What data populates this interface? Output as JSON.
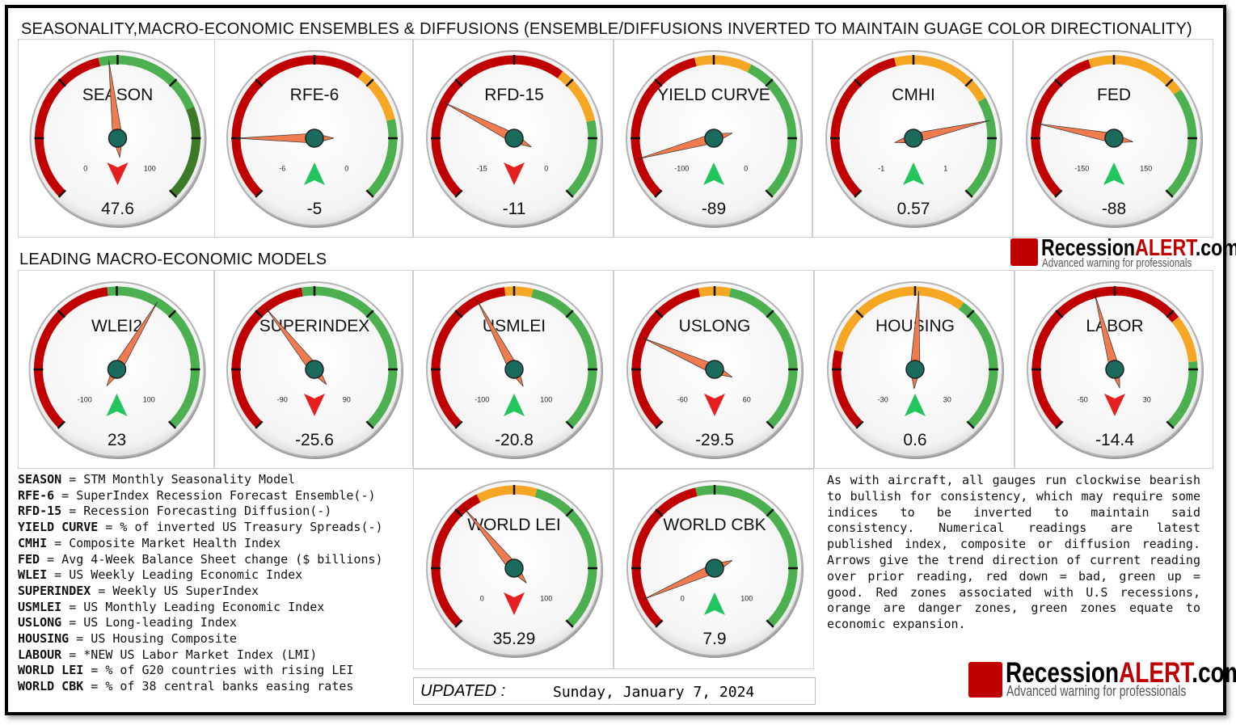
{
  "title_row1": "SEASONALITY,MACRO-ECONOMIC ENSEMBLES & DIFFUSIONS (ENSEMBLE/DIFFUSIONS INVERTED TO MAINTAIN GUAGE COLOR DIRECTIONALITY)",
  "title_row2": "LEADING MACRO-ECONOMIC MODELS",
  "brand": {
    "name_a": "Recession",
    "name_b": "ALERT",
    "name_c": ".com",
    "tagline": "Advanced warning for professionals",
    "color": "#c00000"
  },
  "colors": {
    "red": "#c00000",
    "orange": "#f5a623",
    "green": "#4caf50",
    "dark_green": "#3c7a2a",
    "needle": "#f07b4f",
    "hub": "#1a6b5c",
    "arrow_up": "#22c55e",
    "arrow_down": "#e62020"
  },
  "chart_data": [
    {
      "type": "gauge",
      "name": "SEASON",
      "value": 47.6,
      "value_label": "47.6",
      "min": 0,
      "max": 100,
      "min_label": "0",
      "max_label": "100",
      "trend": "down",
      "zones": [
        {
          "from": 0,
          "to": 45,
          "color": "red"
        },
        {
          "from": 45,
          "to": 75,
          "color": "green"
        },
        {
          "from": 75,
          "to": 100,
          "color": "dark_green"
        }
      ]
    },
    {
      "type": "gauge",
      "name": "RFE-6",
      "value": -5,
      "value_label": "-5",
      "min": -6,
      "max": 0,
      "min_label": "-6",
      "max_label": "0",
      "trend": "up",
      "zones": [
        {
          "from": -6,
          "to": -2.2,
          "color": "red"
        },
        {
          "from": -2.2,
          "to": -1.3,
          "color": "orange"
        },
        {
          "from": -1.3,
          "to": 0,
          "color": "green"
        }
      ]
    },
    {
      "type": "gauge",
      "name": "RFD-15",
      "value": -11,
      "value_label": "-11",
      "min": -15,
      "max": 0,
      "min_label": "-15",
      "max_label": "0",
      "trend": "down",
      "zones": [
        {
          "from": -15,
          "to": -5.5,
          "color": "red"
        },
        {
          "from": -5.5,
          "to": -3.2,
          "color": "orange"
        },
        {
          "from": -3.2,
          "to": 0,
          "color": "green"
        }
      ]
    },
    {
      "type": "gauge",
      "name": "YIELD CURVE",
      "value": -89,
      "value_label": "-89",
      "min": -100,
      "max": 0,
      "min_label": "-100",
      "max_label": "0",
      "trend": "up",
      "zones": [
        {
          "from": -100,
          "to": -55,
          "color": "red"
        },
        {
          "from": -55,
          "to": -40,
          "color": "orange"
        },
        {
          "from": -40,
          "to": 0,
          "color": "green"
        }
      ]
    },
    {
      "type": "gauge",
      "name": "CMHI",
      "value": 0.57,
      "value_label": "0.57",
      "min": -1,
      "max": 1,
      "min_label": "-1",
      "max_label": "1",
      "trend": "up",
      "zones": [
        {
          "from": -1,
          "to": -0.1,
          "color": "red"
        },
        {
          "from": -0.1,
          "to": 0.45,
          "color": "orange"
        },
        {
          "from": 0.45,
          "to": 1,
          "color": "green"
        }
      ]
    },
    {
      "type": "gauge",
      "name": "FED",
      "value": -88,
      "value_label": "-88",
      "min": -150,
      "max": 150,
      "min_label": "-150",
      "max_label": "150",
      "trend": "up",
      "zones": [
        {
          "from": -150,
          "to": -20,
          "color": "red"
        },
        {
          "from": -20,
          "to": 60,
          "color": "orange"
        },
        {
          "from": 60,
          "to": 150,
          "color": "green"
        }
      ]
    },
    {
      "type": "gauge",
      "name": "WLEI2",
      "value": 23,
      "value_label": "23",
      "min": -100,
      "max": 100,
      "min_label": "-100",
      "max_label": "100",
      "trend": "up",
      "zones": [
        {
          "from": -100,
          "to": -5,
          "color": "red"
        },
        {
          "from": -5,
          "to": 100,
          "color": "green"
        }
      ]
    },
    {
      "type": "gauge",
      "name": "SUPERINDEX",
      "value": -25.6,
      "value_label": "-25.6",
      "min": -90,
      "max": 90,
      "min_label": "-90",
      "max_label": "90",
      "trend": "down",
      "zones": [
        {
          "from": -90,
          "to": -6,
          "color": "red"
        },
        {
          "from": -6,
          "to": 90,
          "color": "green"
        }
      ]
    },
    {
      "type": "gauge",
      "name": "USMLEI",
      "value": -20.8,
      "value_label": "-20.8",
      "min": -100,
      "max": 100,
      "min_label": "-100",
      "max_label": "100",
      "trend": "up",
      "zones": [
        {
          "from": -100,
          "to": -5,
          "color": "red"
        },
        {
          "from": -5,
          "to": 10,
          "color": "orange"
        },
        {
          "from": 10,
          "to": 100,
          "color": "green"
        }
      ]
    },
    {
      "type": "gauge",
      "name": "USLONG",
      "value": -29.5,
      "value_label": "-29.5",
      "min": -60,
      "max": 60,
      "min_label": "-60",
      "max_label": "60",
      "trend": "down",
      "zones": [
        {
          "from": -60,
          "to": -5,
          "color": "red"
        },
        {
          "from": -5,
          "to": 5,
          "color": "orange"
        },
        {
          "from": 5,
          "to": 60,
          "color": "green"
        }
      ]
    },
    {
      "type": "gauge",
      "name": "HOUSING",
      "value": 0.6,
      "value_label": "0.6",
      "min": -30,
      "max": 30,
      "min_label": "-30",
      "max_label": "30",
      "trend": "up",
      "zones": [
        {
          "from": -30,
          "to": -17,
          "color": "red"
        },
        {
          "from": -17,
          "to": 8,
          "color": "orange"
        },
        {
          "from": 8,
          "to": 30,
          "color": "green"
        }
      ]
    },
    {
      "type": "gauge",
      "name": "LABOR",
      "value": -14.4,
      "value_label": "-14.4",
      "min": -50,
      "max": 30,
      "min_label": "-50",
      "max_label": "30",
      "trend": "down",
      "zones": [
        {
          "from": -50,
          "to": 5,
          "color": "red"
        },
        {
          "from": 5,
          "to": 15,
          "color": "orange"
        },
        {
          "from": 15,
          "to": 30,
          "color": "green"
        }
      ]
    },
    {
      "type": "gauge",
      "name": "WORLD LEI",
      "value": 35.29,
      "value_label": "35.29",
      "min": 0,
      "max": 100,
      "min_label": "0",
      "max_label": "100",
      "trend": "down",
      "zones": [
        {
          "from": 0,
          "to": 40,
          "color": "red"
        },
        {
          "from": 40,
          "to": 56,
          "color": "orange"
        },
        {
          "from": 56,
          "to": 100,
          "color": "green"
        }
      ]
    },
    {
      "type": "gauge",
      "name": "WORLD CBK",
      "value": 7.9,
      "value_label": "7.9",
      "min": 0,
      "max": 100,
      "min_label": "0",
      "max_label": "100",
      "trend": "up",
      "zones": [
        {
          "from": 0,
          "to": 45,
          "color": "red"
        },
        {
          "from": 45,
          "to": 100,
          "color": "green"
        }
      ]
    }
  ],
  "legend": [
    {
      "key": "SEASON",
      "desc": " = STM Monthly Seasonality Model"
    },
    {
      "key": "RFE-6",
      "desc": " = SuperIndex Recession Forecast Ensemble(-)"
    },
    {
      "key": "RFD-15",
      "desc": " = Recession Forecasting Diffusion(-)"
    },
    {
      "key": "YIELD CURVE",
      "desc": " = % of inverted US Treasury Spreads(-)"
    },
    {
      "key": "CMHI",
      "desc": " = Composite Market Health Index"
    },
    {
      "key": "FED",
      "desc": " = Avg 4-Week Balance Sheet change ($ billions)"
    },
    {
      "key": "WLEI",
      "desc": " = US Weekly Leading Economic Index"
    },
    {
      "key": "SUPERINDEX",
      "desc": " = Weekly US SuperIndex"
    },
    {
      "key": "USMLEI",
      "desc": " = US Monthly Leading Economic Index"
    },
    {
      "key": "USLONG",
      "desc": " = US Long-leading Index"
    },
    {
      "key": "HOUSING",
      "desc": " = US Housing Composite"
    },
    {
      "key": "LABOUR",
      "desc": " = *NEW US Labor Market Index (LMI)"
    },
    {
      "key": "WORLD LEI",
      "desc": " = % of G20 countries with rising LEI"
    },
    {
      "key": "WORLD CBK",
      "desc": " = % of 38 central banks easing rates"
    }
  ],
  "note": "As with aircraft, all gauges run clockwise bearish to bullish for consistency, which may require some indices to be inverted to maintain said consistency. Numerical readings are latest published index, composite or diffusion reading. Arrows give the trend direction of current reading over prior reading, red down = bad, green up = good. Red zones associated with U.S recessions, orange are danger zones, green zones equate to economic expansion.",
  "updated": {
    "label": "UPDATED :",
    "date": "Sunday, January 7, 2024"
  }
}
